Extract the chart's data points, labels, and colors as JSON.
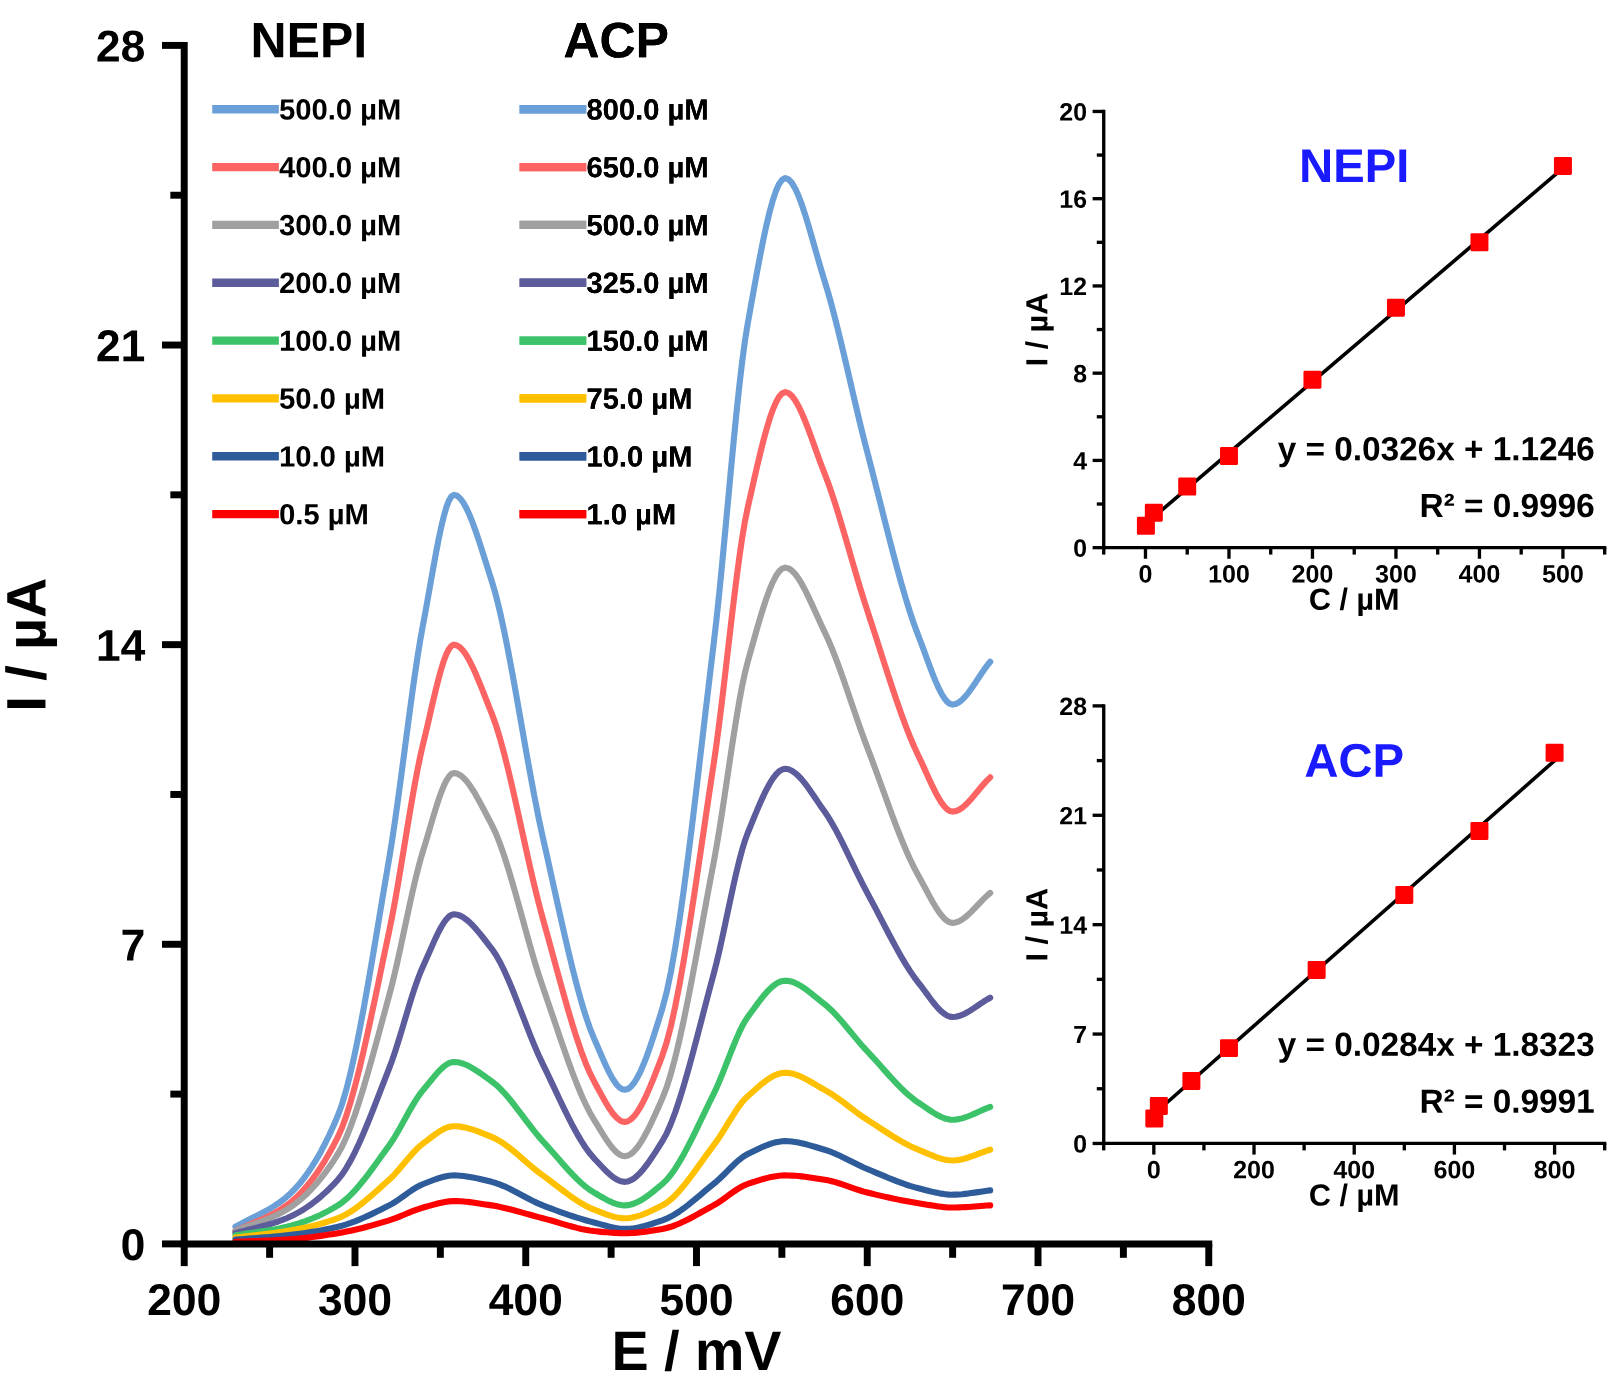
{
  "chart_data": [
    {
      "type": "line",
      "xlabel": "E / mV",
      "ylabel": "I / µA",
      "xlim": [
        200,
        800
      ],
      "xticks": [
        200,
        300,
        400,
        500,
        600,
        700,
        800
      ],
      "ylim": [
        0,
        28
      ],
      "yticks": [
        0,
        7,
        14,
        21,
        28
      ],
      "grid": false,
      "legend": "top left",
      "x": [
        230,
        260,
        290,
        320,
        340,
        358,
        380,
        410,
        440,
        458,
        480,
        510,
        530,
        552,
        575,
        600,
        630,
        650,
        672
      ],
      "annotations": [
        "NEPI",
        "ACP",
        "800.0 µM",
        "650.0 µM",
        "500.0 µM",
        "325.0 µM",
        "150.0 µM",
        "75.0 µM",
        "10.0 µM",
        "1.0 µM"
      ],
      "series": [
        {
          "name": "500.0 µM",
          "color": "#6a9fd8",
          "values": [
            0.4,
            1.1,
            3.0,
            9.0,
            14.5,
            17.5,
            15.5,
            9.5,
            4.8,
            3.6,
            5.5,
            14.0,
            21.5,
            24.9,
            22.5,
            18.5,
            14.2,
            12.6,
            13.6
          ]
        },
        {
          "name": "400.0 µM",
          "color": "#fc6464",
          "values": [
            0.3,
            0.9,
            2.5,
            7.3,
            11.7,
            14.0,
            12.4,
            7.6,
            3.8,
            2.85,
            4.4,
            11.2,
            17.2,
            19.9,
            18.0,
            14.8,
            11.4,
            10.1,
            10.9
          ]
        },
        {
          "name": "300.0 µM",
          "color": "#a0a0a0",
          "values": [
            0.3,
            0.8,
            2.1,
            5.8,
            9.2,
            11.0,
            9.8,
            6.0,
            2.9,
            2.05,
            3.4,
            8.9,
            13.6,
            15.8,
            14.3,
            11.6,
            8.6,
            7.5,
            8.2
          ]
        },
        {
          "name": "200.0 µM",
          "color": "#5c5c9c",
          "values": [
            0.25,
            0.6,
            1.5,
            4.1,
            6.5,
            7.7,
            6.9,
            4.2,
            2.0,
            1.45,
            2.4,
            6.3,
            9.6,
            11.1,
            10.1,
            8.2,
            6.1,
            5.3,
            5.75
          ]
        },
        {
          "name": "100.0 µM",
          "color": "#3cc36a",
          "values": [
            0.2,
            0.4,
            0.9,
            2.3,
            3.6,
            4.25,
            3.8,
            2.4,
            1.2,
            0.9,
            1.4,
            3.5,
            5.3,
            6.15,
            5.6,
            4.5,
            3.3,
            2.9,
            3.2
          ]
        },
        {
          "name": "50.0 µM",
          "color": "#ffc000",
          "values": [
            0.15,
            0.3,
            0.6,
            1.5,
            2.35,
            2.75,
            2.5,
            1.6,
            0.8,
            0.6,
            0.9,
            2.3,
            3.45,
            4.0,
            3.6,
            2.9,
            2.2,
            1.95,
            2.2
          ]
        },
        {
          "name": "10.0 µM",
          "color": "#2e5c9a",
          "values": [
            0.1,
            0.2,
            0.4,
            0.9,
            1.4,
            1.6,
            1.45,
            0.9,
            0.5,
            0.35,
            0.55,
            1.4,
            2.1,
            2.4,
            2.2,
            1.75,
            1.3,
            1.15,
            1.25
          ]
        },
        {
          "name": "0.5 µM",
          "color": "#ff0000",
          "values": [
            0.05,
            0.1,
            0.25,
            0.55,
            0.85,
            1.0,
            0.9,
            0.6,
            0.3,
            0.25,
            0.35,
            0.9,
            1.4,
            1.6,
            1.5,
            1.2,
            0.95,
            0.85,
            0.9
          ]
        }
      ]
    },
    {
      "type": "scatter",
      "title": "NEPI",
      "xlabel": "C / µM",
      "ylabel": "I / µA",
      "xlim": [
        -50,
        550
      ],
      "xticks": [
        0,
        100,
        200,
        300,
        400,
        500
      ],
      "ylim": [
        0,
        20
      ],
      "yticks": [
        0,
        4,
        8,
        12,
        16,
        20
      ],
      "grid": false,
      "annotations": [
        "y = 0.0326x + 1.1246",
        "R² = 0.9996"
      ],
      "series": [
        {
          "type": "line",
          "color": "#000000",
          "x": [
            0.5,
            500
          ],
          "values": [
            1.1,
            17.4
          ]
        },
        {
          "type": "scatter",
          "marker": "square",
          "color": "#ff0000",
          "x": [
            0.5,
            10,
            50,
            100,
            200,
            300,
            400,
            500
          ],
          "values": [
            1.0,
            1.6,
            2.8,
            4.2,
            7.7,
            11.0,
            14.0,
            17.5
          ]
        }
      ]
    },
    {
      "type": "scatter",
      "title": "ACP",
      "xlabel": "C / µM",
      "ylabel": "I / µA",
      "xlim": [
        -100,
        900
      ],
      "xticks": [
        0,
        200,
        400,
        600,
        800
      ],
      "ylim": [
        0,
        28
      ],
      "yticks": [
        0,
        7,
        14,
        21,
        28
      ],
      "grid": false,
      "annotations": [
        "y = 0.0284x + 1.8323",
        "R² = 0.9991"
      ],
      "series": [
        {
          "type": "line",
          "color": "#000000",
          "x": [
            1,
            800
          ],
          "values": [
            1.9,
            24.5
          ]
        },
        {
          "type": "scatter",
          "marker": "square",
          "color": "#ff0000",
          "x": [
            1,
            10,
            75,
            150,
            325,
            500,
            650,
            800
          ],
          "values": [
            1.6,
            2.4,
            4.0,
            6.1,
            11.1,
            15.9,
            20.0,
            25.0
          ]
        }
      ]
    }
  ]
}
